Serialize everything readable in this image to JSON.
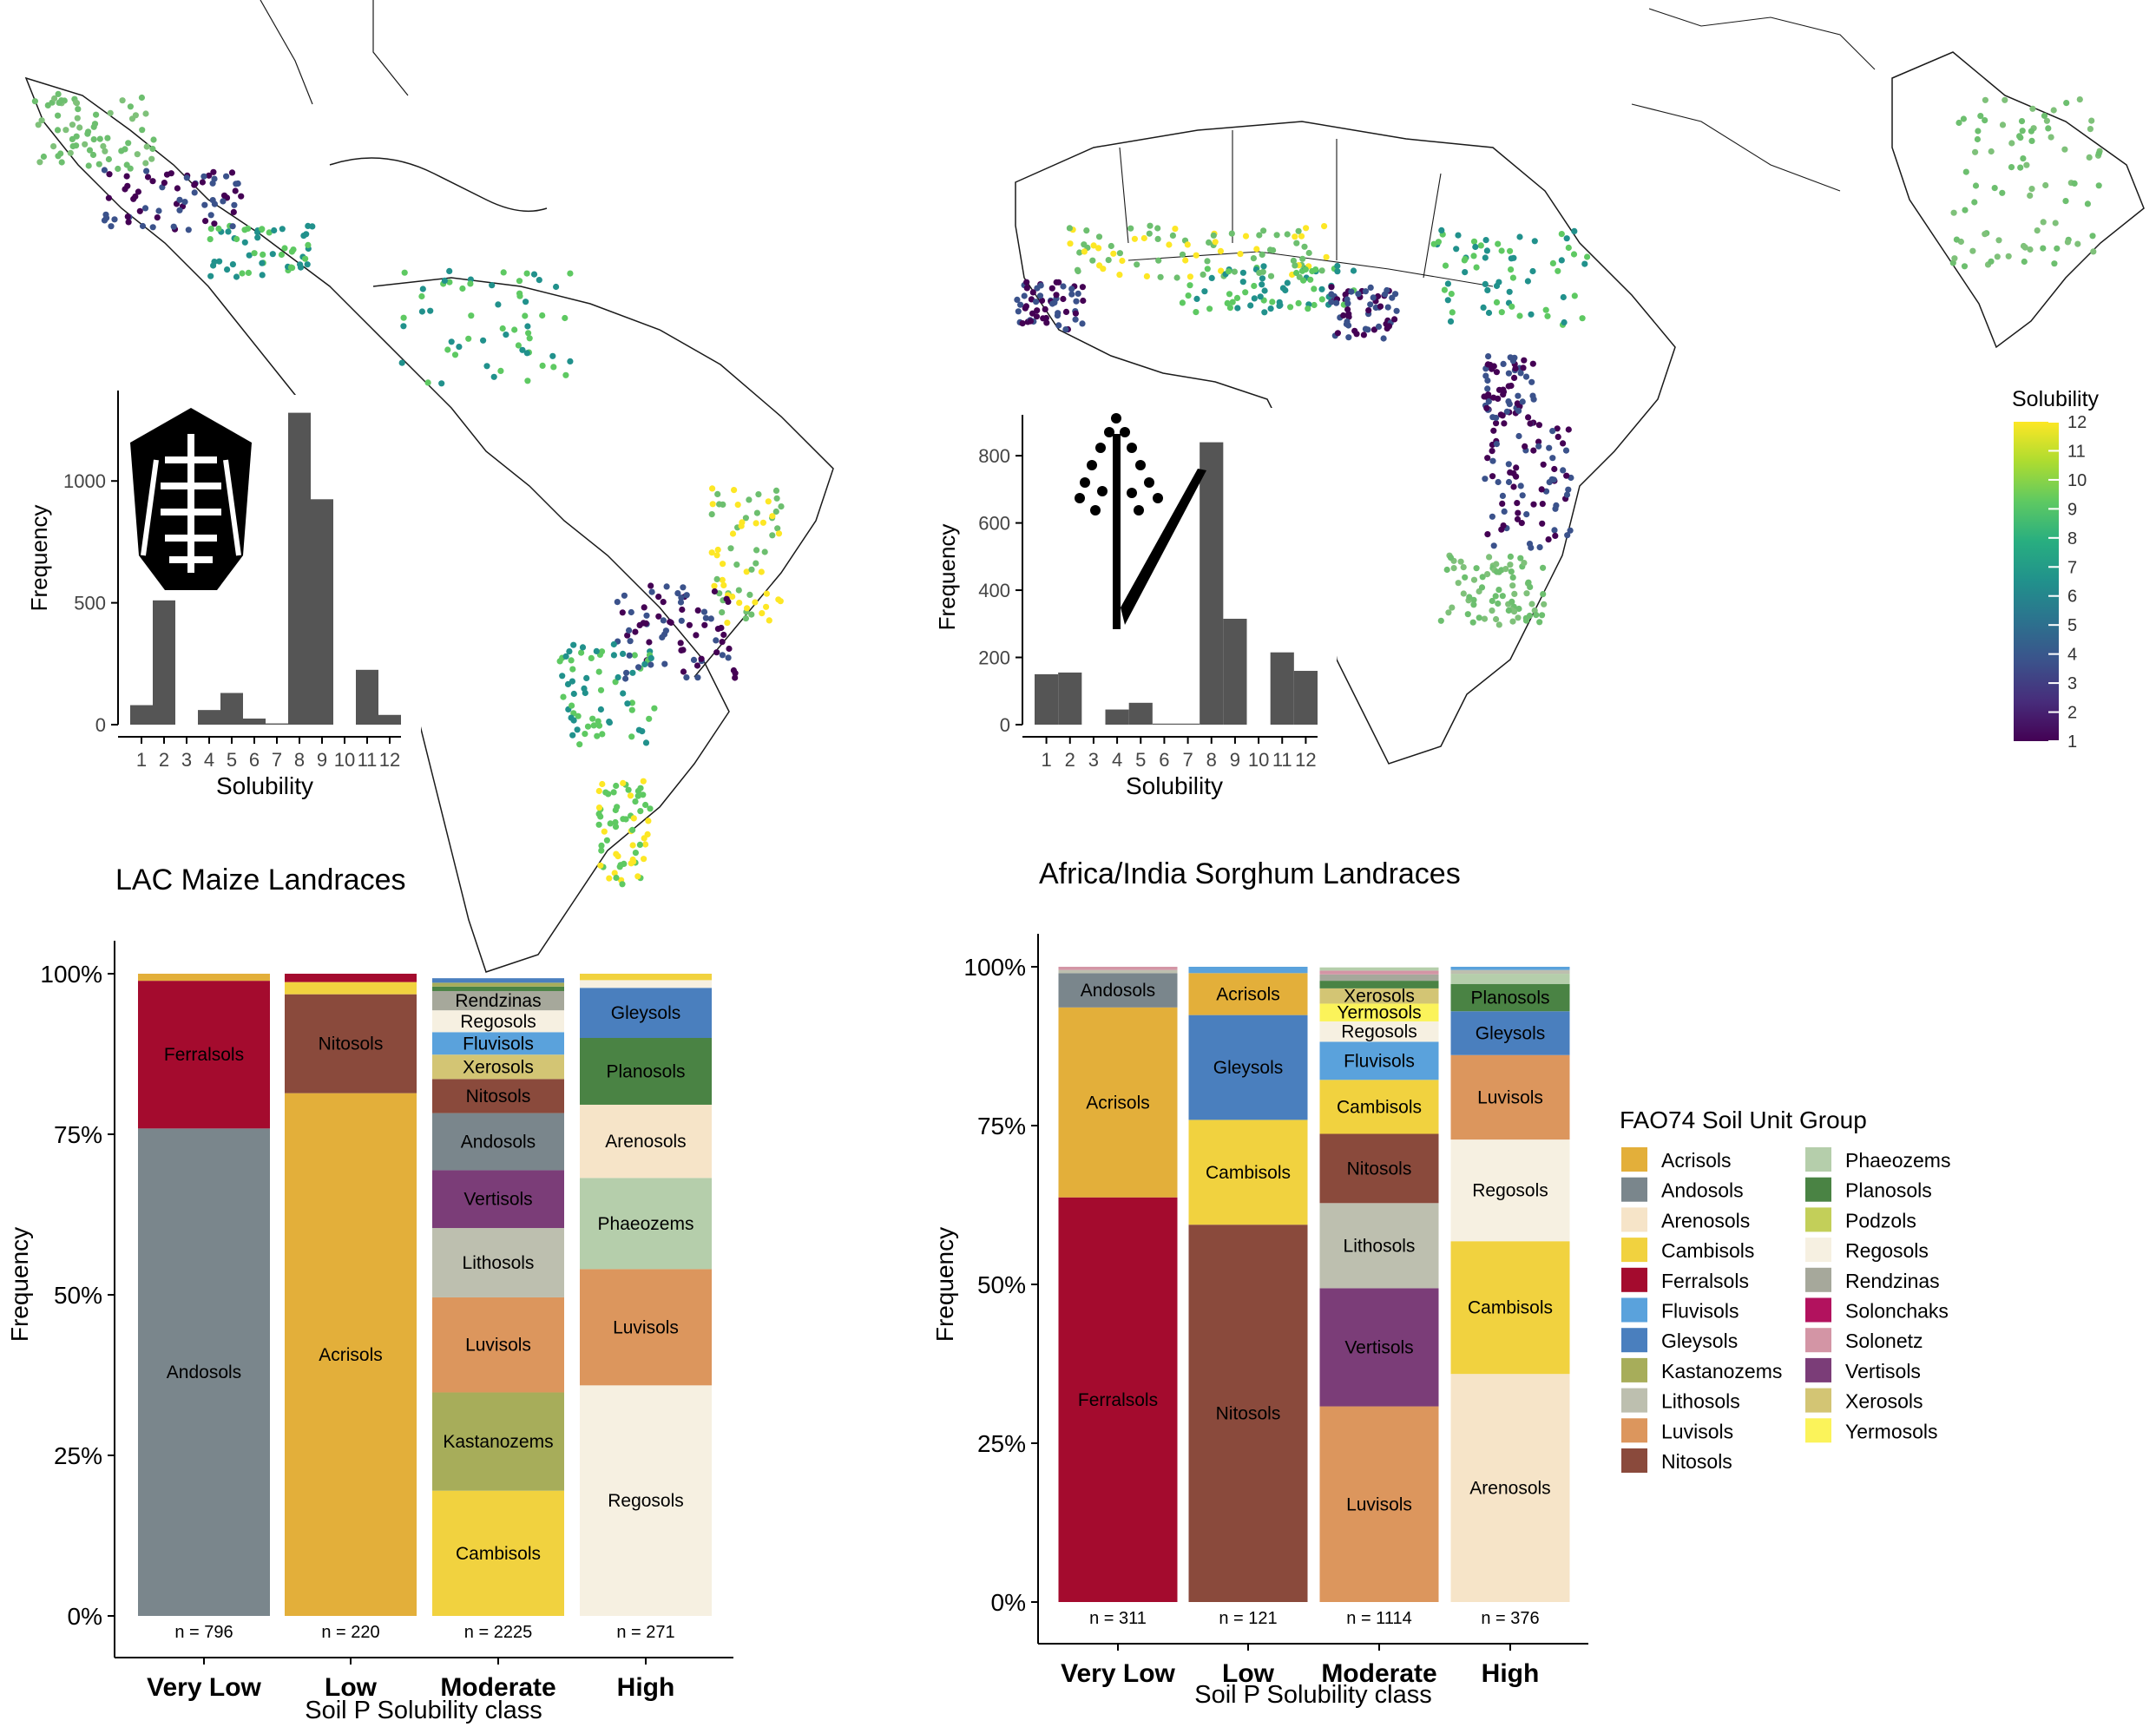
{
  "chart_data": [
    {
      "type": "histogram",
      "panel": "top-left-inset",
      "map_region": "Latin America and the Caribbean",
      "title": "",
      "xlabel": "Solubility",
      "ylabel": "Frequency",
      "x": [
        1,
        2,
        3,
        4,
        5,
        6,
        7,
        8,
        9,
        10,
        11,
        12
      ],
      "values": [
        80,
        510,
        0,
        60,
        130,
        25,
        5,
        1280,
        925,
        0,
        225,
        40
      ],
      "ylim": [
        0,
        1300
      ],
      "yticks": [
        "0",
        "500",
        "1000"
      ],
      "xticks": [
        "1",
        "2",
        "3",
        "4",
        "5",
        "6",
        "7",
        "8",
        "9",
        "10",
        "11",
        "12"
      ],
      "icon": "maize-icon"
    },
    {
      "type": "histogram",
      "panel": "top-right-inset",
      "map_region": "Africa and India",
      "title": "",
      "xlabel": "Solubility",
      "ylabel": "Frequency",
      "x": [
        1,
        2,
        3,
        4,
        5,
        6,
        7,
        8,
        9,
        10,
        11,
        12
      ],
      "values": [
        150,
        155,
        0,
        45,
        65,
        3,
        3,
        840,
        315,
        0,
        215,
        160
      ],
      "ylim": [
        0,
        870
      ],
      "yticks": [
        "0",
        "200",
        "400",
        "600",
        "800"
      ],
      "xticks": [
        "1",
        "2",
        "3",
        "4",
        "5",
        "6",
        "7",
        "8",
        "9",
        "10",
        "11",
        "12"
      ],
      "icon": "sorghum-icon",
      "colorbar": {
        "title": "Solubility",
        "ticks": [
          "12",
          "11",
          "10",
          "9",
          "8",
          "7",
          "6",
          "5",
          "4",
          "3",
          "2",
          "1"
        ],
        "colors": [
          "#440154",
          "#472d7b",
          "#3b528b",
          "#2c728e",
          "#21918c",
          "#28ae80",
          "#5ec962",
          "#addc30",
          "#fde725"
        ]
      }
    },
    {
      "type": "stacked-bar",
      "panel": "bottom-left",
      "title": "LAC Maize Landraces",
      "xlabel": "Soil P Solubility class",
      "ylabel": "Frequency",
      "categories": [
        "Very Low",
        "Low",
        "Moderate",
        "High"
      ],
      "n_labels": [
        "n = 796",
        "n = 220",
        "n = 2225",
        "n = 271"
      ],
      "yticks": [
        "0%",
        "25%",
        "50%",
        "75%",
        "100%"
      ],
      "stacks": [
        [
          {
            "name": "Andosols",
            "value": 75.9,
            "label": "Andosols"
          },
          {
            "name": "Ferralsols",
            "value": 23.0,
            "label": "Ferralsols"
          },
          {
            "name": "Acrisols",
            "value": 1.1,
            "label": ""
          }
        ],
        [
          {
            "name": "Acrisols",
            "value": 81.4,
            "label": "Acrisols"
          },
          {
            "name": "Nitosols",
            "value": 15.4,
            "label": "Nitosols"
          },
          {
            "name": "Cambisols",
            "value": 1.9,
            "label": ""
          },
          {
            "name": "Ferralsols",
            "value": 1.3,
            "label": ""
          }
        ],
        [
          {
            "name": "Cambisols",
            "value": 19.5,
            "label": "Cambisols"
          },
          {
            "name": "Kastanozems",
            "value": 15.3,
            "label": "Kastanozems"
          },
          {
            "name": "Luvisols",
            "value": 14.8,
            "label": "Luvisols"
          },
          {
            "name": "Lithosols",
            "value": 10.8,
            "label": "Lithosols"
          },
          {
            "name": "Vertisols",
            "value": 9.0,
            "label": "Vertisols"
          },
          {
            "name": "Andosols",
            "value": 8.9,
            "label": "Andosols"
          },
          {
            "name": "Nitosols",
            "value": 5.3,
            "label": "Nitosols"
          },
          {
            "name": "Xerosols",
            "value": 3.8,
            "label": "Xerosols"
          },
          {
            "name": "Fluvisols",
            "value": 3.5,
            "label": "Fluvisols"
          },
          {
            "name": "Regosols",
            "value": 3.4,
            "label": "Regosols"
          },
          {
            "name": "Rendzinas",
            "value": 3.0,
            "label": "Rendzinas"
          },
          {
            "name": "Planosols",
            "value": 0.7,
            "label": ""
          },
          {
            "name": "Kastanozems",
            "value": 0.6,
            "label": ""
          },
          {
            "name": "Gleysols",
            "value": 0.7,
            "label": ""
          }
        ],
        [
          {
            "name": "Regosols",
            "value": 35.9,
            "label": "Regosols"
          },
          {
            "name": "Luvisols",
            "value": 18.1,
            "label": "Luvisols"
          },
          {
            "name": "Phaeozems",
            "value": 14.2,
            "label": "Phaeozems"
          },
          {
            "name": "Arenosols",
            "value": 11.4,
            "label": "Arenosols"
          },
          {
            "name": "Planosols",
            "value": 10.4,
            "label": "Planosols"
          },
          {
            "name": "Gleysols",
            "value": 7.8,
            "label": "Gleysols"
          },
          {
            "name": "Regosols",
            "value": 1.2,
            "label": ""
          },
          {
            "name": "Cambisols",
            "value": 1.0,
            "label": ""
          }
        ]
      ]
    },
    {
      "type": "stacked-bar",
      "panel": "bottom-right",
      "title": "Africa/India Sorghum Landraces",
      "xlabel": "Soil P Solubility class",
      "ylabel": "Frequency",
      "categories": [
        "Very Low",
        "Low",
        "Moderate",
        "High"
      ],
      "n_labels": [
        "n = 311",
        "n = 121",
        "n = 1114",
        "n = 376"
      ],
      "yticks": [
        "0%",
        "25%",
        "50%",
        "75%",
        "100%"
      ],
      "stacks": [
        [
          {
            "name": "Ferralsols",
            "value": 63.7,
            "label": "Ferralsols"
          },
          {
            "name": "Acrisols",
            "value": 29.9,
            "label": "Acrisols"
          },
          {
            "name": "Andosols",
            "value": 5.4,
            "label": "Andosols"
          },
          {
            "name": "Lithosols",
            "value": 0.5,
            "label": ""
          },
          {
            "name": "Solonetz",
            "value": 0.5,
            "label": ""
          }
        ],
        [
          {
            "name": "Nitosols",
            "value": 59.4,
            "label": "Nitosols"
          },
          {
            "name": "Cambisols",
            "value": 16.5,
            "label": "Cambisols"
          },
          {
            "name": "Gleysols",
            "value": 16.5,
            "label": "Gleysols"
          },
          {
            "name": "Acrisols",
            "value": 6.6,
            "label": "Acrisols"
          },
          {
            "name": "Fluvisols",
            "value": 1.0,
            "label": ""
          }
        ],
        [
          {
            "name": "Luvisols",
            "value": 30.8,
            "label": "Luvisols"
          },
          {
            "name": "Vertisols",
            "value": 18.6,
            "label": "Vertisols"
          },
          {
            "name": "Lithosols",
            "value": 13.4,
            "label": "Lithosols"
          },
          {
            "name": "Nitosols",
            "value": 10.9,
            "label": "Nitosols"
          },
          {
            "name": "Cambisols",
            "value": 8.5,
            "label": "Cambisols"
          },
          {
            "name": "Fluvisols",
            "value": 6.0,
            "label": "Fluvisols"
          },
          {
            "name": "Regosols",
            "value": 3.2,
            "label": "Regosols"
          },
          {
            "name": "Yermosols",
            "value": 2.8,
            "label": "Yermosols"
          },
          {
            "name": "Xerosols",
            "value": 2.4,
            "label": "Xerosols"
          },
          {
            "name": "Planosols",
            "value": 1.2,
            "label": ""
          },
          {
            "name": "Rendzinas",
            "value": 1.0,
            "label": ""
          },
          {
            "name": "Solonetz",
            "value": 0.6,
            "label": ""
          },
          {
            "name": "Phaeozems",
            "value": 0.5,
            "label": ""
          }
        ],
        [
          {
            "name": "Arenosols",
            "value": 35.9,
            "label": "Arenosols"
          },
          {
            "name": "Cambisols",
            "value": 20.9,
            "label": "Cambisols"
          },
          {
            "name": "Regosols",
            "value": 16.0,
            "label": "Regosols"
          },
          {
            "name": "Luvisols",
            "value": 13.3,
            "label": "Luvisols"
          },
          {
            "name": "Gleysols",
            "value": 6.9,
            "label": "Gleysols"
          },
          {
            "name": "Planosols",
            "value": 4.3,
            "label": "Planosols"
          },
          {
            "name": "Phaeozems",
            "value": 1.6,
            "label": ""
          },
          {
            "name": "Lithosols",
            "value": 0.6,
            "label": ""
          },
          {
            "name": "Fluvisols",
            "value": 0.5,
            "label": ""
          }
        ]
      ]
    }
  ],
  "legend": {
    "title": "FAO74 Soil Unit Group",
    "items": [
      {
        "name": "Acrisols",
        "color": "#e3af3a"
      },
      {
        "name": "Andosols",
        "color": "#7a868c"
      },
      {
        "name": "Arenosols",
        "color": "#f6e4c8"
      },
      {
        "name": "Cambisols",
        "color": "#f1d23f"
      },
      {
        "name": "Ferralsols",
        "color": "#a40b2e"
      },
      {
        "name": "Fluvisols",
        "color": "#5aa2dc"
      },
      {
        "name": "Gleysols",
        "color": "#4a7fbe"
      },
      {
        "name": "Kastanozems",
        "color": "#a7ad5a"
      },
      {
        "name": "Lithosols",
        "color": "#bdbfaf"
      },
      {
        "name": "Luvisols",
        "color": "#dc965d"
      },
      {
        "name": "Nitosols",
        "color": "#8a4a3c"
      },
      {
        "name": "Phaeozems",
        "color": "#b5ceab"
      },
      {
        "name": "Planosols",
        "color": "#4a8344"
      },
      {
        "name": "Podzols",
        "color": "#c3cf59"
      },
      {
        "name": "Regosols",
        "color": "#f6f0e1"
      },
      {
        "name": "Rendzinas",
        "color": "#a6a89b"
      },
      {
        "name": "Solonchaks",
        "color": "#b2125e"
      },
      {
        "name": "Solonetz",
        "color": "#d395a5"
      },
      {
        "name": "Vertisols",
        "color": "#7b3d78"
      },
      {
        "name": "Xerosols",
        "color": "#d3c574"
      },
      {
        "name": "Yermosols",
        "color": "#fbf35a"
      }
    ]
  }
}
